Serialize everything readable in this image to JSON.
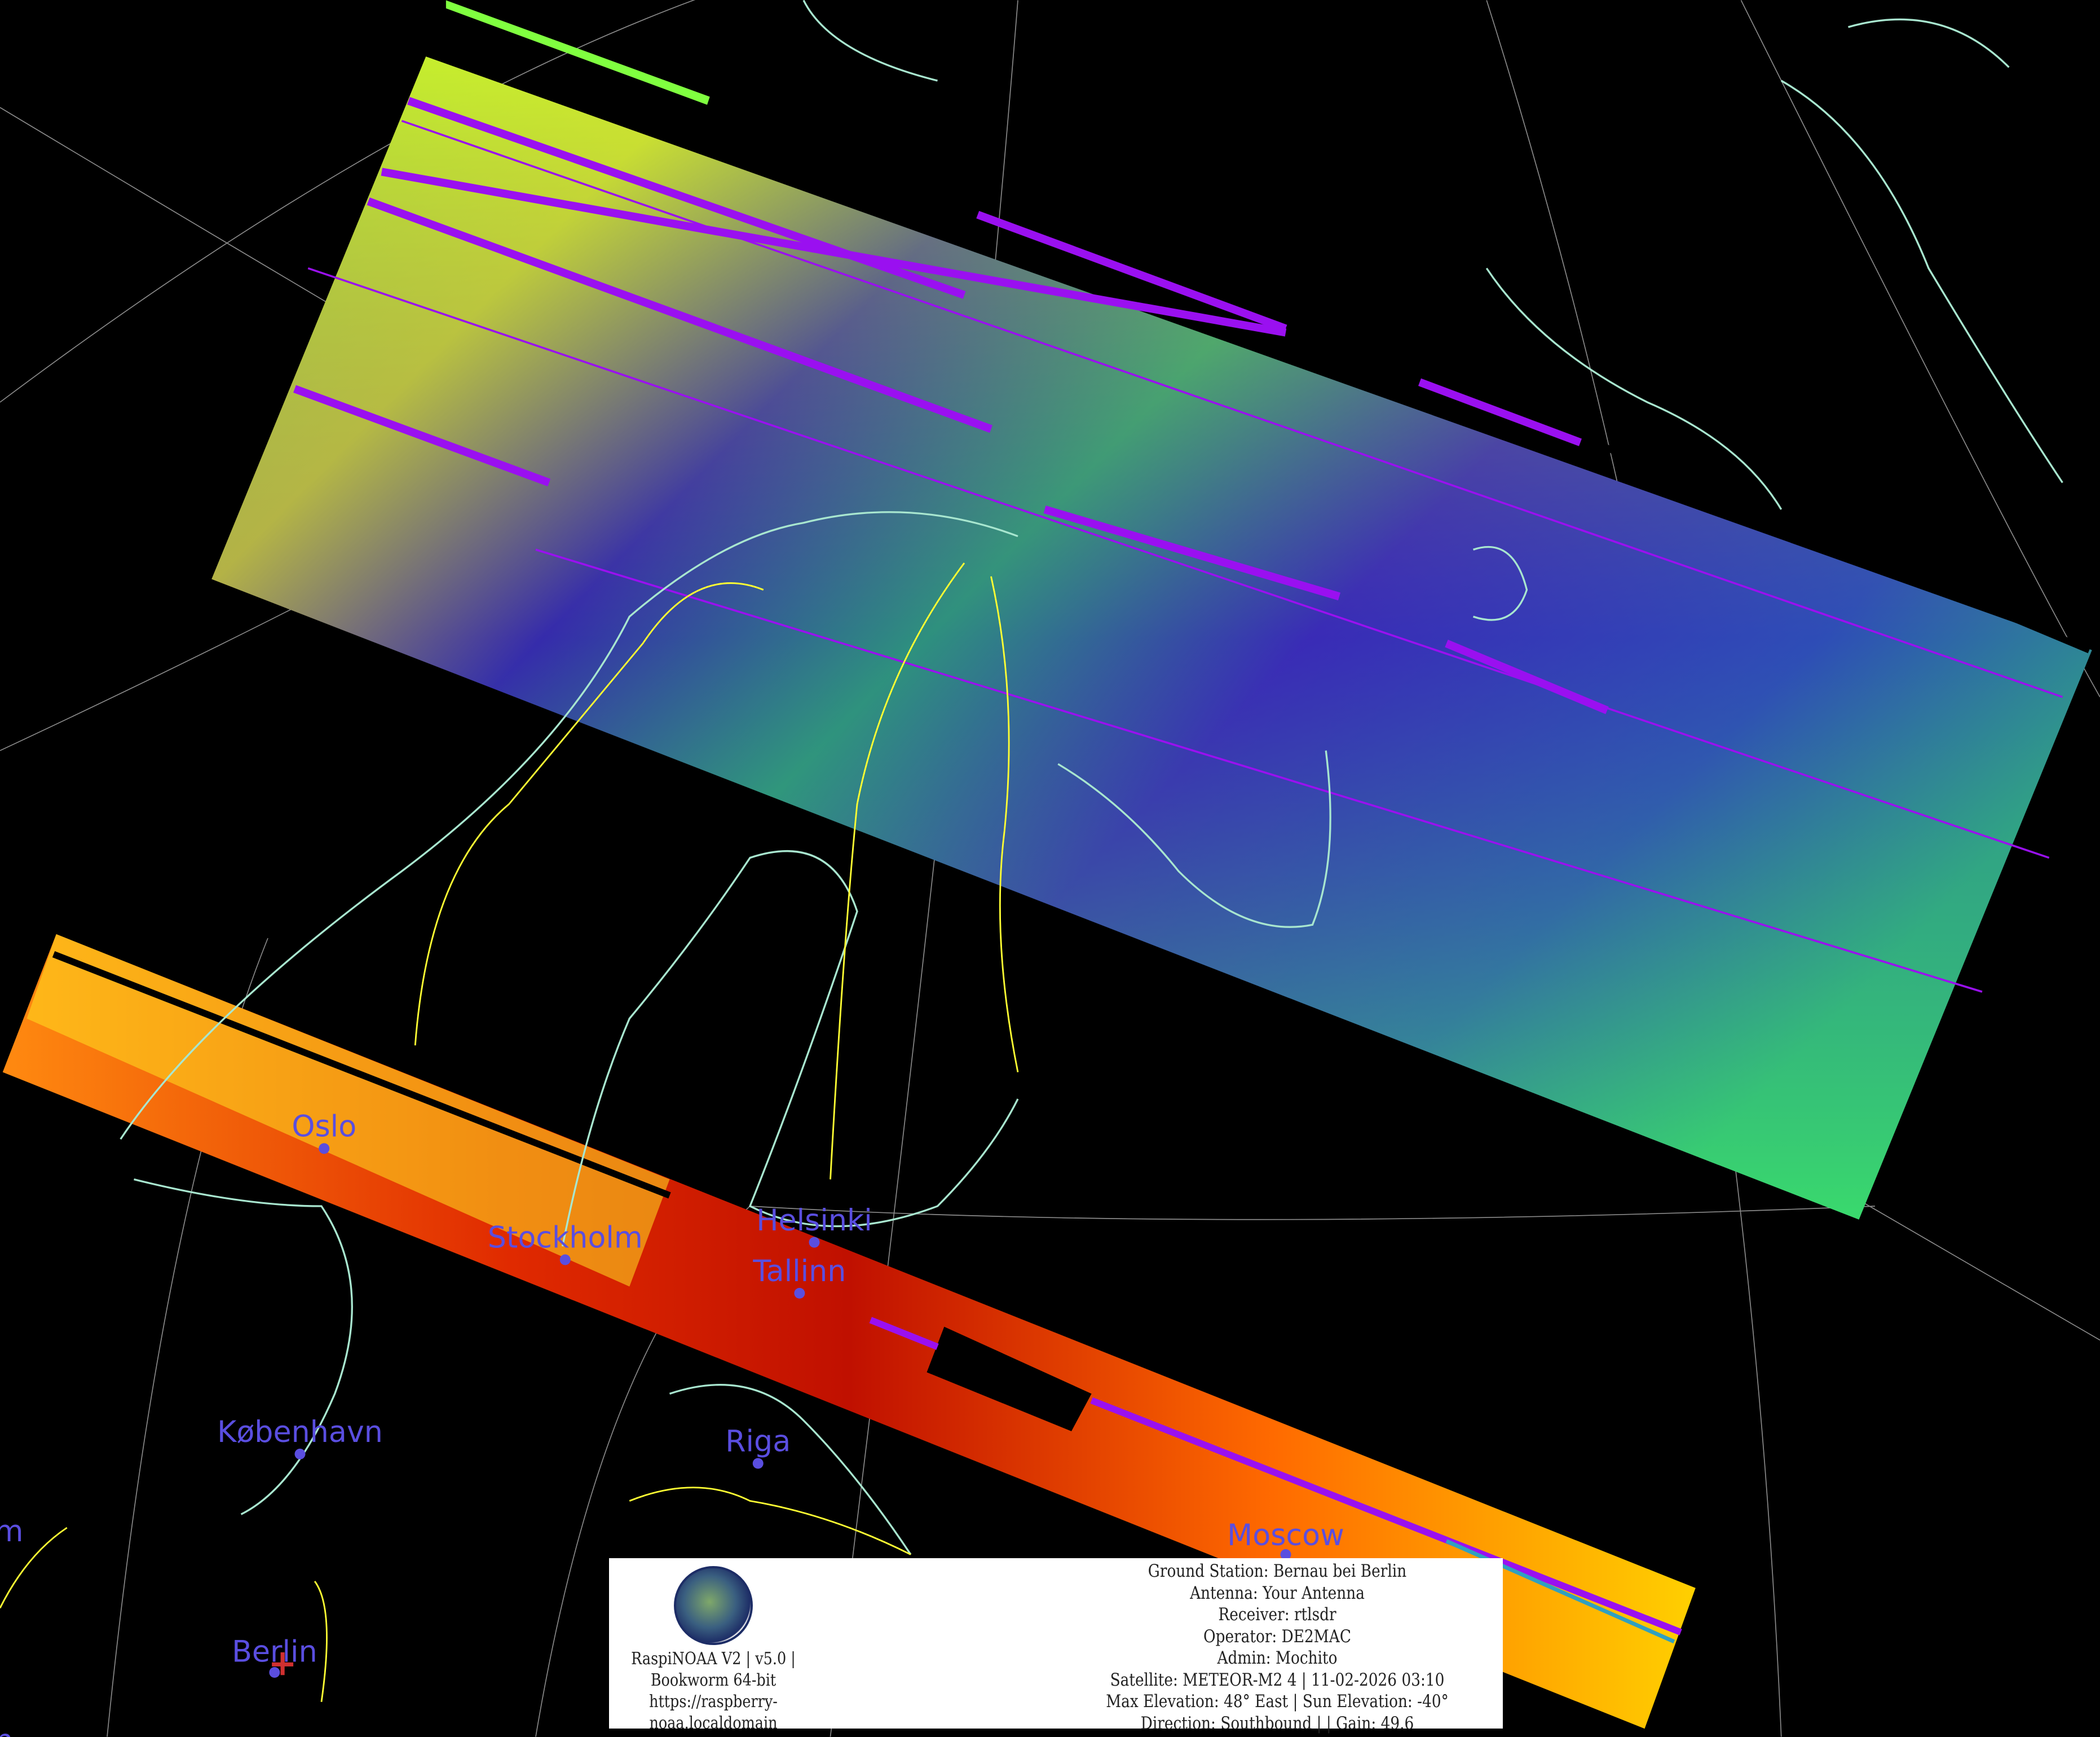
{
  "map": {
    "satellite_image": "METEOR-M2 4 pass composite over Scandinavia / Baltic",
    "colors": {
      "background": "#000000",
      "coastline": "#a8e6cf",
      "border": "#ffff33",
      "graticule": "#9a9a9a",
      "city": "#5a4ee0",
      "station_marker": "#d03030",
      "swath_ir_low": "#440099",
      "swath_ir_mid": "#22c080",
      "swath_ir_high": "#ffff00",
      "swath_vis": "#e02000"
    },
    "cities": [
      {
        "name": "Oslo"
      },
      {
        "name": "Stockholm"
      },
      {
        "name": "Helsinki"
      },
      {
        "name": "Tallinn"
      },
      {
        "name": "København"
      },
      {
        "name": "Riga"
      },
      {
        "name": "Moscow"
      },
      {
        "name": "Berlin"
      }
    ],
    "partial_labels": [
      "m",
      "n"
    ],
    "station_marker_icon": "red-cross"
  },
  "info": {
    "left": [
      "RaspiNOAA V2 | v5.0 |",
      "Bookworm 64-bit",
      "https://raspberry-",
      "noaa.localdomain"
    ],
    "right": [
      "Ground Station: Bernau bei Berlin",
      "Antenna: Your Antenna",
      "Receiver: rtlsdr",
      "Operator: DE2MAC",
      "Admin: Mochito",
      "Satellite: METEOR-M2 4 | 11-02-2026 03:10",
      "Max Elevation: 48° East | Sun Elevation: -40°",
      "Direction: Southbound | | Gain: 49.6"
    ]
  }
}
